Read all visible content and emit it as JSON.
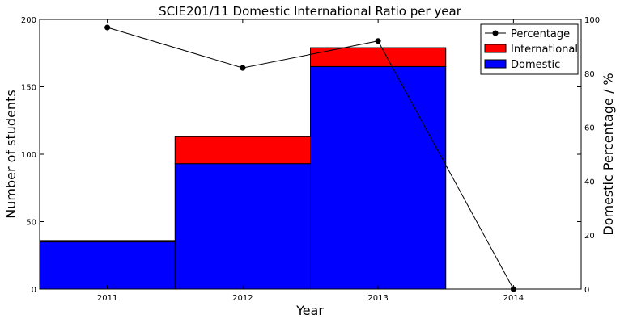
{
  "chart_data": {
    "type": "bar",
    "title": "SCIE201/11 Domestic International Ratio per year",
    "xlabel": "Year",
    "ylabel": "Number of students",
    "y2label": "Domestic Percentage / %",
    "categories": [
      "2011",
      "2012",
      "2013",
      "2014"
    ],
    "ylim": [
      0,
      200
    ],
    "y2lim": [
      0,
      100
    ],
    "y_ticks": [
      0,
      50,
      100,
      150,
      200
    ],
    "y2_ticks": [
      0,
      20,
      40,
      60,
      80,
      100
    ],
    "stacked": true,
    "series": [
      {
        "name": "Domestic",
        "type": "bar",
        "color": "#0000ff",
        "values": [
          35,
          93,
          165,
          0
        ]
      },
      {
        "name": "International",
        "type": "bar",
        "color": "#ff0000",
        "values": [
          1,
          20,
          14,
          0
        ]
      },
      {
        "name": "Percentage",
        "type": "line",
        "axis": "right",
        "color": "#000000",
        "values": [
          97,
          82,
          92,
          0
        ]
      }
    ],
    "legend": {
      "position": "top-right",
      "entries": [
        "Percentage",
        "International",
        "Domestic"
      ]
    },
    "grid": false
  }
}
